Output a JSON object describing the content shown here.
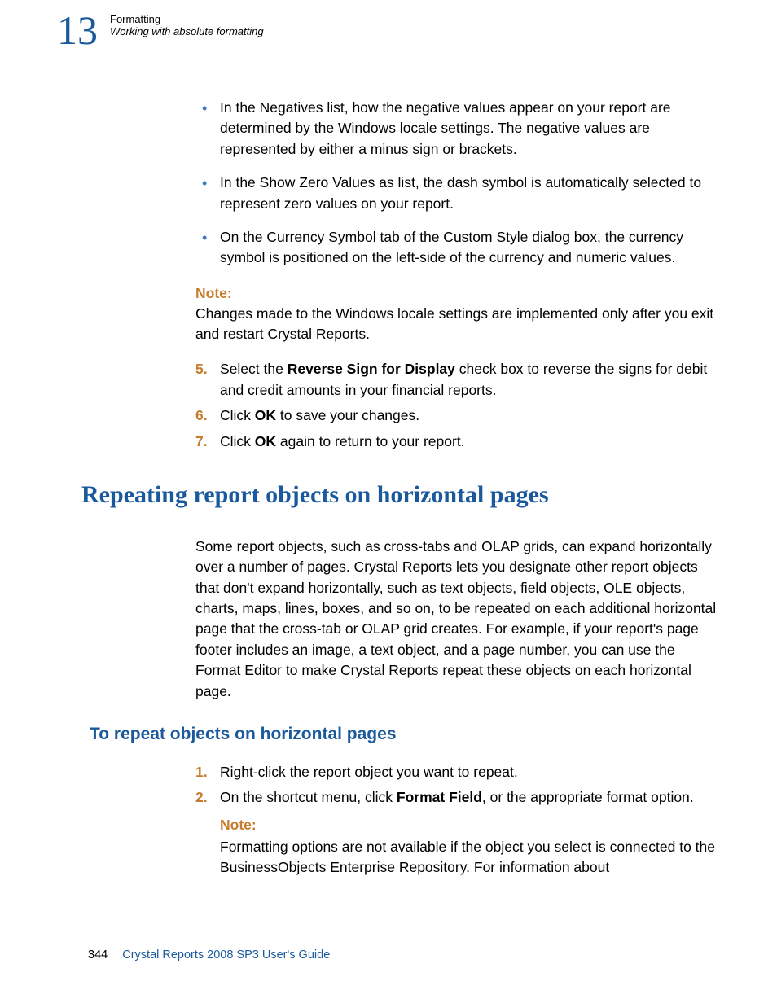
{
  "colors": {
    "accent_blue": "#1a5a9c",
    "accent_orange": "#c77d2e",
    "bullet_blue": "#3a7ab8",
    "text": "#000000",
    "background": "#ffffff"
  },
  "chapter": {
    "number": "13",
    "title": "Formatting",
    "subtitle": "Working with absolute formatting"
  },
  "bullets": [
    "In the Negatives list, how the negative values appear on your report are determined by the Windows locale settings. The negative values are represented by either a minus sign or brackets.",
    "In the Show Zero Values as list, the dash symbol is automatically selected to represent zero values on your report.",
    "On the Currency Symbol tab of the Custom Style dialog box, the currency symbol is positioned on the left-side of the currency and numeric values."
  ],
  "note1": {
    "label": "Note:",
    "text": "Changes made to the Windows locale settings are implemented only after you exit and restart Crystal Reports."
  },
  "steps1": [
    {
      "num": "5.",
      "pre": "Select the ",
      "bold": "Reverse Sign for Display",
      "post": " check box to reverse the signs for debit and credit amounts in your financial reports."
    },
    {
      "num": "6.",
      "pre": "Click ",
      "bold": "OK",
      "post": " to save your changes."
    },
    {
      "num": "7.",
      "pre": "Click ",
      "bold": "OK",
      "post": " again to return to your report."
    }
  ],
  "heading1": "Repeating report objects on horizontal pages",
  "para1": "Some report objects, such as cross-tabs and OLAP grids, can expand horizontally over a number of pages. Crystal Reports lets you designate other report objects that don't expand horizontally, such as text objects, field objects, OLE objects, charts, maps, lines, boxes, and so on, to be repeated on each additional horizontal page that the cross-tab or OLAP grid creates. For example, if your report's page footer includes an image, a text object, and a page number, you can use the Format Editor to make Crystal Reports repeat these objects on each horizontal page.",
  "heading2": "To repeat objects on horizontal pages",
  "steps2": [
    {
      "num": "1.",
      "pre": "Right-click the report object you want to repeat.",
      "bold": "",
      "post": ""
    },
    {
      "num": "2.",
      "pre": "On the shortcut menu, click ",
      "bold": "Format Field",
      "post": ", or the appropriate format option."
    }
  ],
  "note2": {
    "label": "Note:",
    "text": "Formatting options are not available if the object you select is connected to the BusinessObjects Enterprise Repository. For information about"
  },
  "footer": {
    "page": "344",
    "guide": "Crystal Reports 2008 SP3 User's Guide"
  }
}
